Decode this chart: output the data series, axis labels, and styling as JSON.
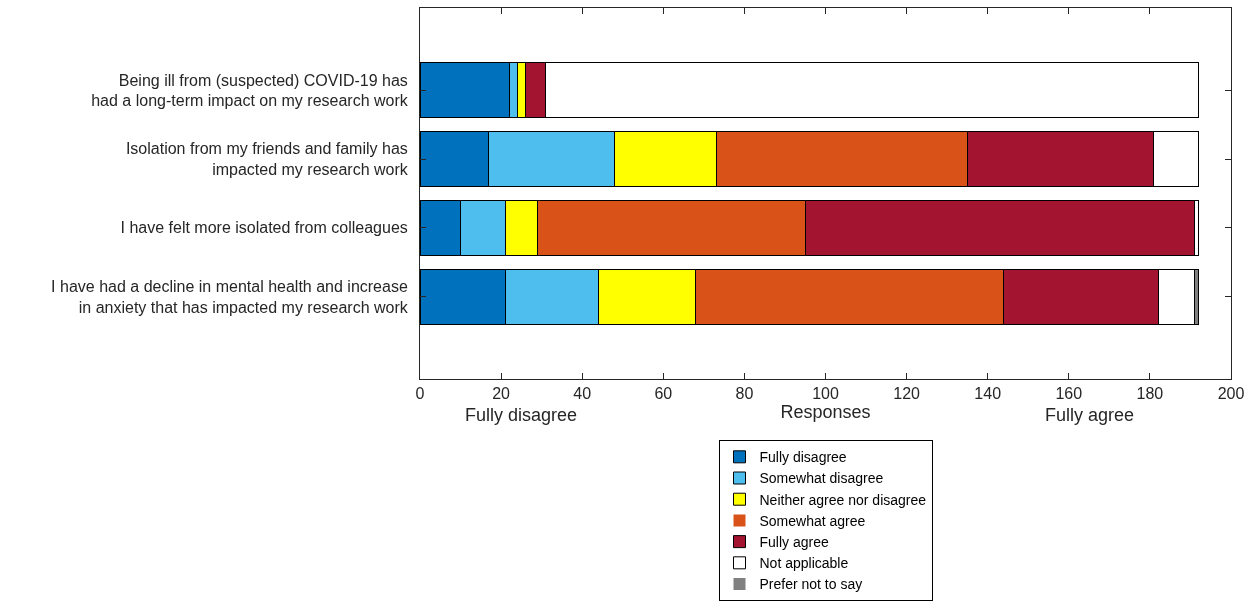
{
  "chart_data": {
    "type": "bar",
    "orientation": "horizontal",
    "stacked": true,
    "categories": [
      "Being ill from (suspected) COVID-19 has\nhad a long-term impact on my research work",
      "Isolation from my friends and family has\nimpacted my research work",
      "I have felt more isolated from colleagues",
      "I have had a decline in mental health and increase\nin anxiety that has impacted my research work"
    ],
    "series": [
      {
        "name": "Fully disagree",
        "color": "#0072bd",
        "values": [
          22,
          17,
          10,
          21
        ]
      },
      {
        "name": "Somewhat disagree",
        "color": "#4dbeee",
        "values": [
          2,
          31,
          11,
          23
        ]
      },
      {
        "name": "Neither agree nor disagree",
        "color": "#ffff00",
        "values": [
          2,
          25,
          8,
          24
        ]
      },
      {
        "name": "Somewhat agree",
        "color": "#d95319",
        "values": [
          0,
          62,
          66,
          76
        ]
      },
      {
        "name": "Fully agree",
        "color": "#a2142f",
        "values": [
          5,
          46,
          96,
          38
        ]
      },
      {
        "name": "Not applicable",
        "color": "#ffffff",
        "values": [
          161,
          11,
          1,
          9
        ]
      },
      {
        "name": "Prefer not to say",
        "color": "#808080",
        "values": [
          0,
          0,
          0,
          1
        ]
      }
    ],
    "xlabel": "Responses",
    "annotations": [
      "Fully disagree",
      "Fully agree"
    ],
    "xlim": [
      0,
      200
    ],
    "xticks": [
      0,
      20,
      40,
      60,
      80,
      100,
      120,
      140,
      160,
      180,
      200
    ],
    "legend": "bottom"
  }
}
